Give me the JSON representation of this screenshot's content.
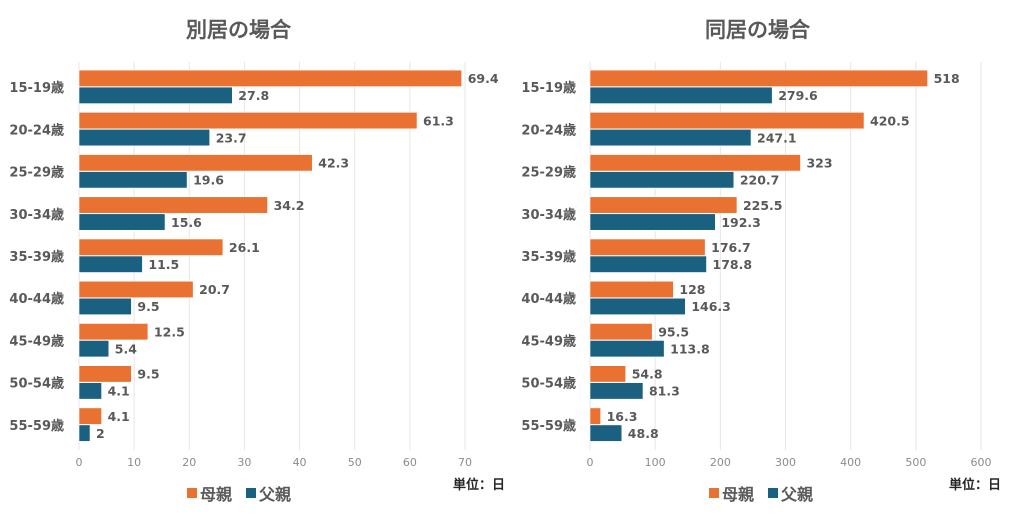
{
  "colors": {
    "mother": "#E97132",
    "father": "#196081",
    "grid": "#E6E6E6",
    "text": "#595959"
  },
  "unit_label": "単位：日",
  "chart_data": [
    {
      "type": "bar",
      "orientation": "horizontal",
      "title": "別居の場合",
      "categories": [
        "15-19歳",
        "20-24歳",
        "25-29歳",
        "30-34歳",
        "35-39歳",
        "40-44歳",
        "45-49歳",
        "50-54歳",
        "55-59歳"
      ],
      "series": [
        {
          "name": "母親",
          "values": [
            69.4,
            61.3,
            42.3,
            34.2,
            26.1,
            20.7,
            12.5,
            9.5,
            4.1
          ]
        },
        {
          "name": "父親",
          "values": [
            27.8,
            23.7,
            19.6,
            15.6,
            11.5,
            9.5,
            5.4,
            4.1,
            2
          ]
        }
      ],
      "xlim": [
        0,
        70
      ],
      "xticks": [
        0,
        10,
        20,
        30,
        40,
        50,
        60,
        70
      ],
      "xlabel": "",
      "ylabel": "",
      "grid": "vertical",
      "legend": "bottom",
      "unit": "単位：日"
    },
    {
      "type": "bar",
      "orientation": "horizontal",
      "title": "同居の場合",
      "categories": [
        "15-19歳",
        "20-24歳",
        "25-29歳",
        "30-34歳",
        "35-39歳",
        "40-44歳",
        "45-49歳",
        "50-54歳",
        "55-59歳"
      ],
      "series": [
        {
          "name": "母親",
          "values": [
            518,
            420.5,
            323,
            225.5,
            176.7,
            128,
            95.5,
            54.8,
            16.3
          ]
        },
        {
          "name": "父親",
          "values": [
            279.6,
            247.1,
            220.7,
            192.3,
            178.8,
            146.3,
            113.8,
            81.3,
            48.8
          ]
        }
      ],
      "xlim": [
        0,
        600
      ],
      "xticks": [
        0,
        100,
        200,
        300,
        400,
        500,
        600
      ],
      "xlabel": "",
      "ylabel": "",
      "grid": "vertical",
      "legend": "bottom",
      "unit": "単位：日"
    }
  ]
}
